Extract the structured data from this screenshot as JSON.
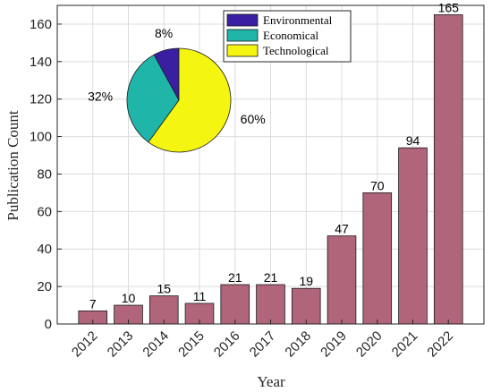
{
  "chart_data": [
    {
      "type": "bar",
      "categories": [
        "2012",
        "2013",
        "2014",
        "2015",
        "2016",
        "2017",
        "2018",
        "2019",
        "2020",
        "2021",
        "2022"
      ],
      "values": [
        7,
        10,
        15,
        11,
        21,
        21,
        19,
        47,
        70,
        94,
        165
      ],
      "data_labels": [
        "7",
        "10",
        "15",
        "11",
        "21",
        "21",
        "19",
        "47",
        "70",
        "94",
        "165"
      ],
      "xlabel": "Year",
      "ylabel": "Publication Count",
      "ylim": [
        0,
        170
      ],
      "yticks": [
        "0",
        "20",
        "40",
        "60",
        "80",
        "100",
        "120",
        "140",
        "160"
      ],
      "grid": true,
      "bar_color": "#b0657b"
    },
    {
      "type": "pie",
      "labels": [
        "Environmental",
        "Economical",
        "Technological"
      ],
      "values": [
        8,
        32,
        60
      ],
      "percent_labels": [
        "8%",
        "32%",
        "60%"
      ],
      "colors": [
        "#3b1fa3",
        "#1fb5a8",
        "#f5f512"
      ],
      "legend_position": "top-right"
    }
  ]
}
